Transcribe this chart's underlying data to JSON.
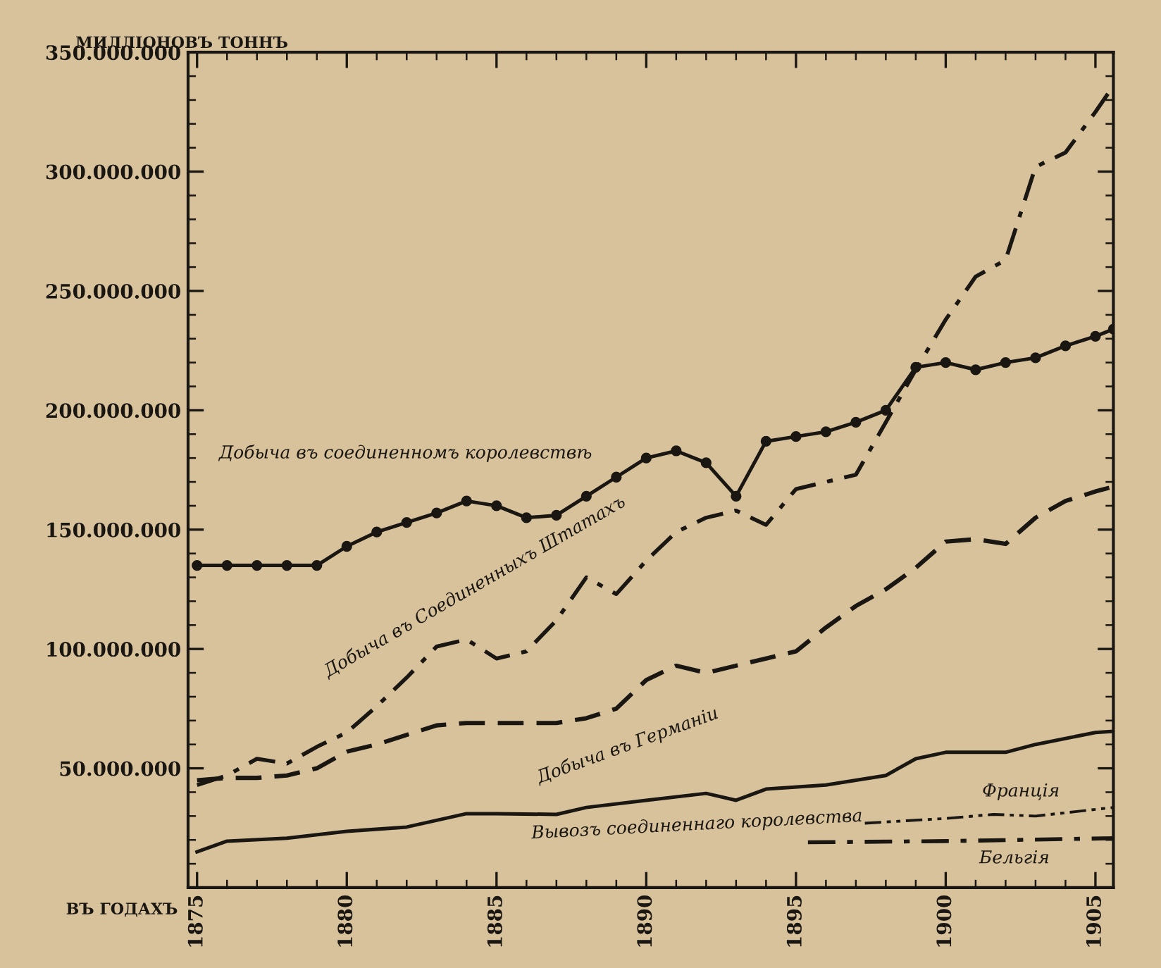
{
  "chart_data": {
    "type": "line",
    "ylabel": "МИЛЛIОНОВЪ ТОННЪ",
    "xlabel": "ВЪ ГОДАХЪ",
    "xlim": [
      1874.7,
      1905.6
    ],
    "xticks": [
      1875,
      1880,
      1885,
      1890,
      1895,
      1900,
      1905
    ],
    "ylim": [
      0,
      350000000
    ],
    "yticks": [
      {
        "value": 50000000,
        "label": "50.000.000"
      },
      {
        "value": 100000000,
        "label": "100.000.000"
      },
      {
        "value": 150000000,
        "label": "150.000.000"
      },
      {
        "value": 200000000,
        "label": "200.000.000"
      },
      {
        "value": 250000000,
        "label": "250.000.000"
      },
      {
        "value": 300000000,
        "label": "300.000.000"
      },
      {
        "value": 350000000,
        "label": "350.000.000"
      }
    ],
    "grid": false,
    "legend": false,
    "series": [
      {
        "name": "Добыча въ соединенномъ королевствѣ",
        "color": "#1a1612",
        "line_style": "solid",
        "marker": "circle",
        "x": [
          1875,
          1876,
          1877,
          1878,
          1879,
          1880,
          1881,
          1882,
          1883,
          1884,
          1885,
          1886,
          1887,
          1888,
          1889,
          1890,
          1891,
          1892,
          1893,
          1894,
          1895,
          1896,
          1897,
          1898,
          1899,
          1900,
          1901,
          1902,
          1903,
          1904,
          1905,
          1905.6
        ],
        "values": [
          135000000,
          135000000,
          135000000,
          135000000,
          135000000,
          143000000,
          149000000,
          153000000,
          157000000,
          162000000,
          160000000,
          155000000,
          156000000,
          164000000,
          172000000,
          180000000,
          183000000,
          178000000,
          164000000,
          187000000,
          189000000,
          191000000,
          195000000,
          200000000,
          218000000,
          220000000,
          217000000,
          220000000,
          222000000,
          227000000,
          231000000,
          234000000
        ]
      },
      {
        "name": "Добыча въ Соединенныхъ Штатахъ",
        "color": "#1a1612",
        "line_style": "dashdot",
        "x": [
          1875,
          1876,
          1877,
          1878,
          1879,
          1880,
          1881,
          1882,
          1883,
          1884,
          1885,
          1886,
          1887,
          1888,
          1889,
          1890,
          1891,
          1892,
          1893,
          1894,
          1895,
          1896,
          1897,
          1898,
          1899,
          1900,
          1901,
          1902,
          1903,
          1904,
          1905,
          1905.6
        ],
        "values": [
          43000000,
          47000000,
          54000000,
          52000000,
          59000000,
          65000000,
          76000000,
          88000000,
          101000000,
          104000000,
          96000000,
          99000000,
          112000000,
          130000000,
          123000000,
          137000000,
          149000000,
          155000000,
          158000000,
          152000000,
          167000000,
          170000000,
          173000000,
          195000000,
          217000000,
          238000000,
          256000000,
          263000000,
          302000000,
          308000000,
          325000000,
          336000000
        ]
      },
      {
        "name": "Добыча въ Германіи",
        "color": "#1a1612",
        "line_style": "dashed",
        "x": [
          1875,
          1876,
          1877,
          1878,
          1879,
          1880,
          1881,
          1882,
          1883,
          1884,
          1885,
          1886,
          1887,
          1888,
          1889,
          1890,
          1891,
          1892,
          1893,
          1894,
          1895,
          1896,
          1897,
          1898,
          1899,
          1900,
          1901,
          1902,
          1903,
          1904,
          1905,
          1905.6
        ],
        "values": [
          45000000,
          46000000,
          46000000,
          47000000,
          50000000,
          57000000,
          60000000,
          64000000,
          68000000,
          69000000,
          69000000,
          69000000,
          69000000,
          71000000,
          75000000,
          87000000,
          93000000,
          90000000,
          93000000,
          96000000,
          99000000,
          109000000,
          118000000,
          125000000,
          134000000,
          145000000,
          146000000,
          144000000,
          155000000,
          162000000,
          166000000,
          168000000
        ]
      },
      {
        "name": "Вывозъ соединеннаго королевства",
        "color": "#1a1612",
        "line_style": "solid",
        "x": [
          1875,
          1876,
          1878,
          1880,
          1882,
          1884,
          1885,
          1887,
          1888,
          1890,
          1892,
          1893,
          1894,
          1896,
          1898,
          1899,
          1900,
          1902,
          1903,
          1905,
          1905.6
        ],
        "values": [
          15000000,
          19500000,
          20700000,
          23600000,
          25400000,
          31000000,
          31000000,
          30700000,
          33600000,
          36600000,
          39500000,
          36600000,
          41300000,
          43000000,
          47000000,
          54000000,
          56700000,
          56700000,
          60000000,
          65000000,
          65500000
        ]
      },
      {
        "name": "Франція",
        "color": "#1a1612",
        "line_style": "dashdotdot",
        "x": [
          1897.3,
          1900,
          1901.6,
          1903,
          1905.6
        ],
        "values": [
          27000000,
          29000000,
          30700000,
          30000000,
          33600000
        ]
      },
      {
        "name": "Бельгія",
        "color": "#1a1612",
        "line_style": "dashdot",
        "x": [
          1895.4,
          1900,
          1905.6
        ],
        "values": [
          19000000,
          19500000,
          20700000
        ]
      }
    ]
  }
}
